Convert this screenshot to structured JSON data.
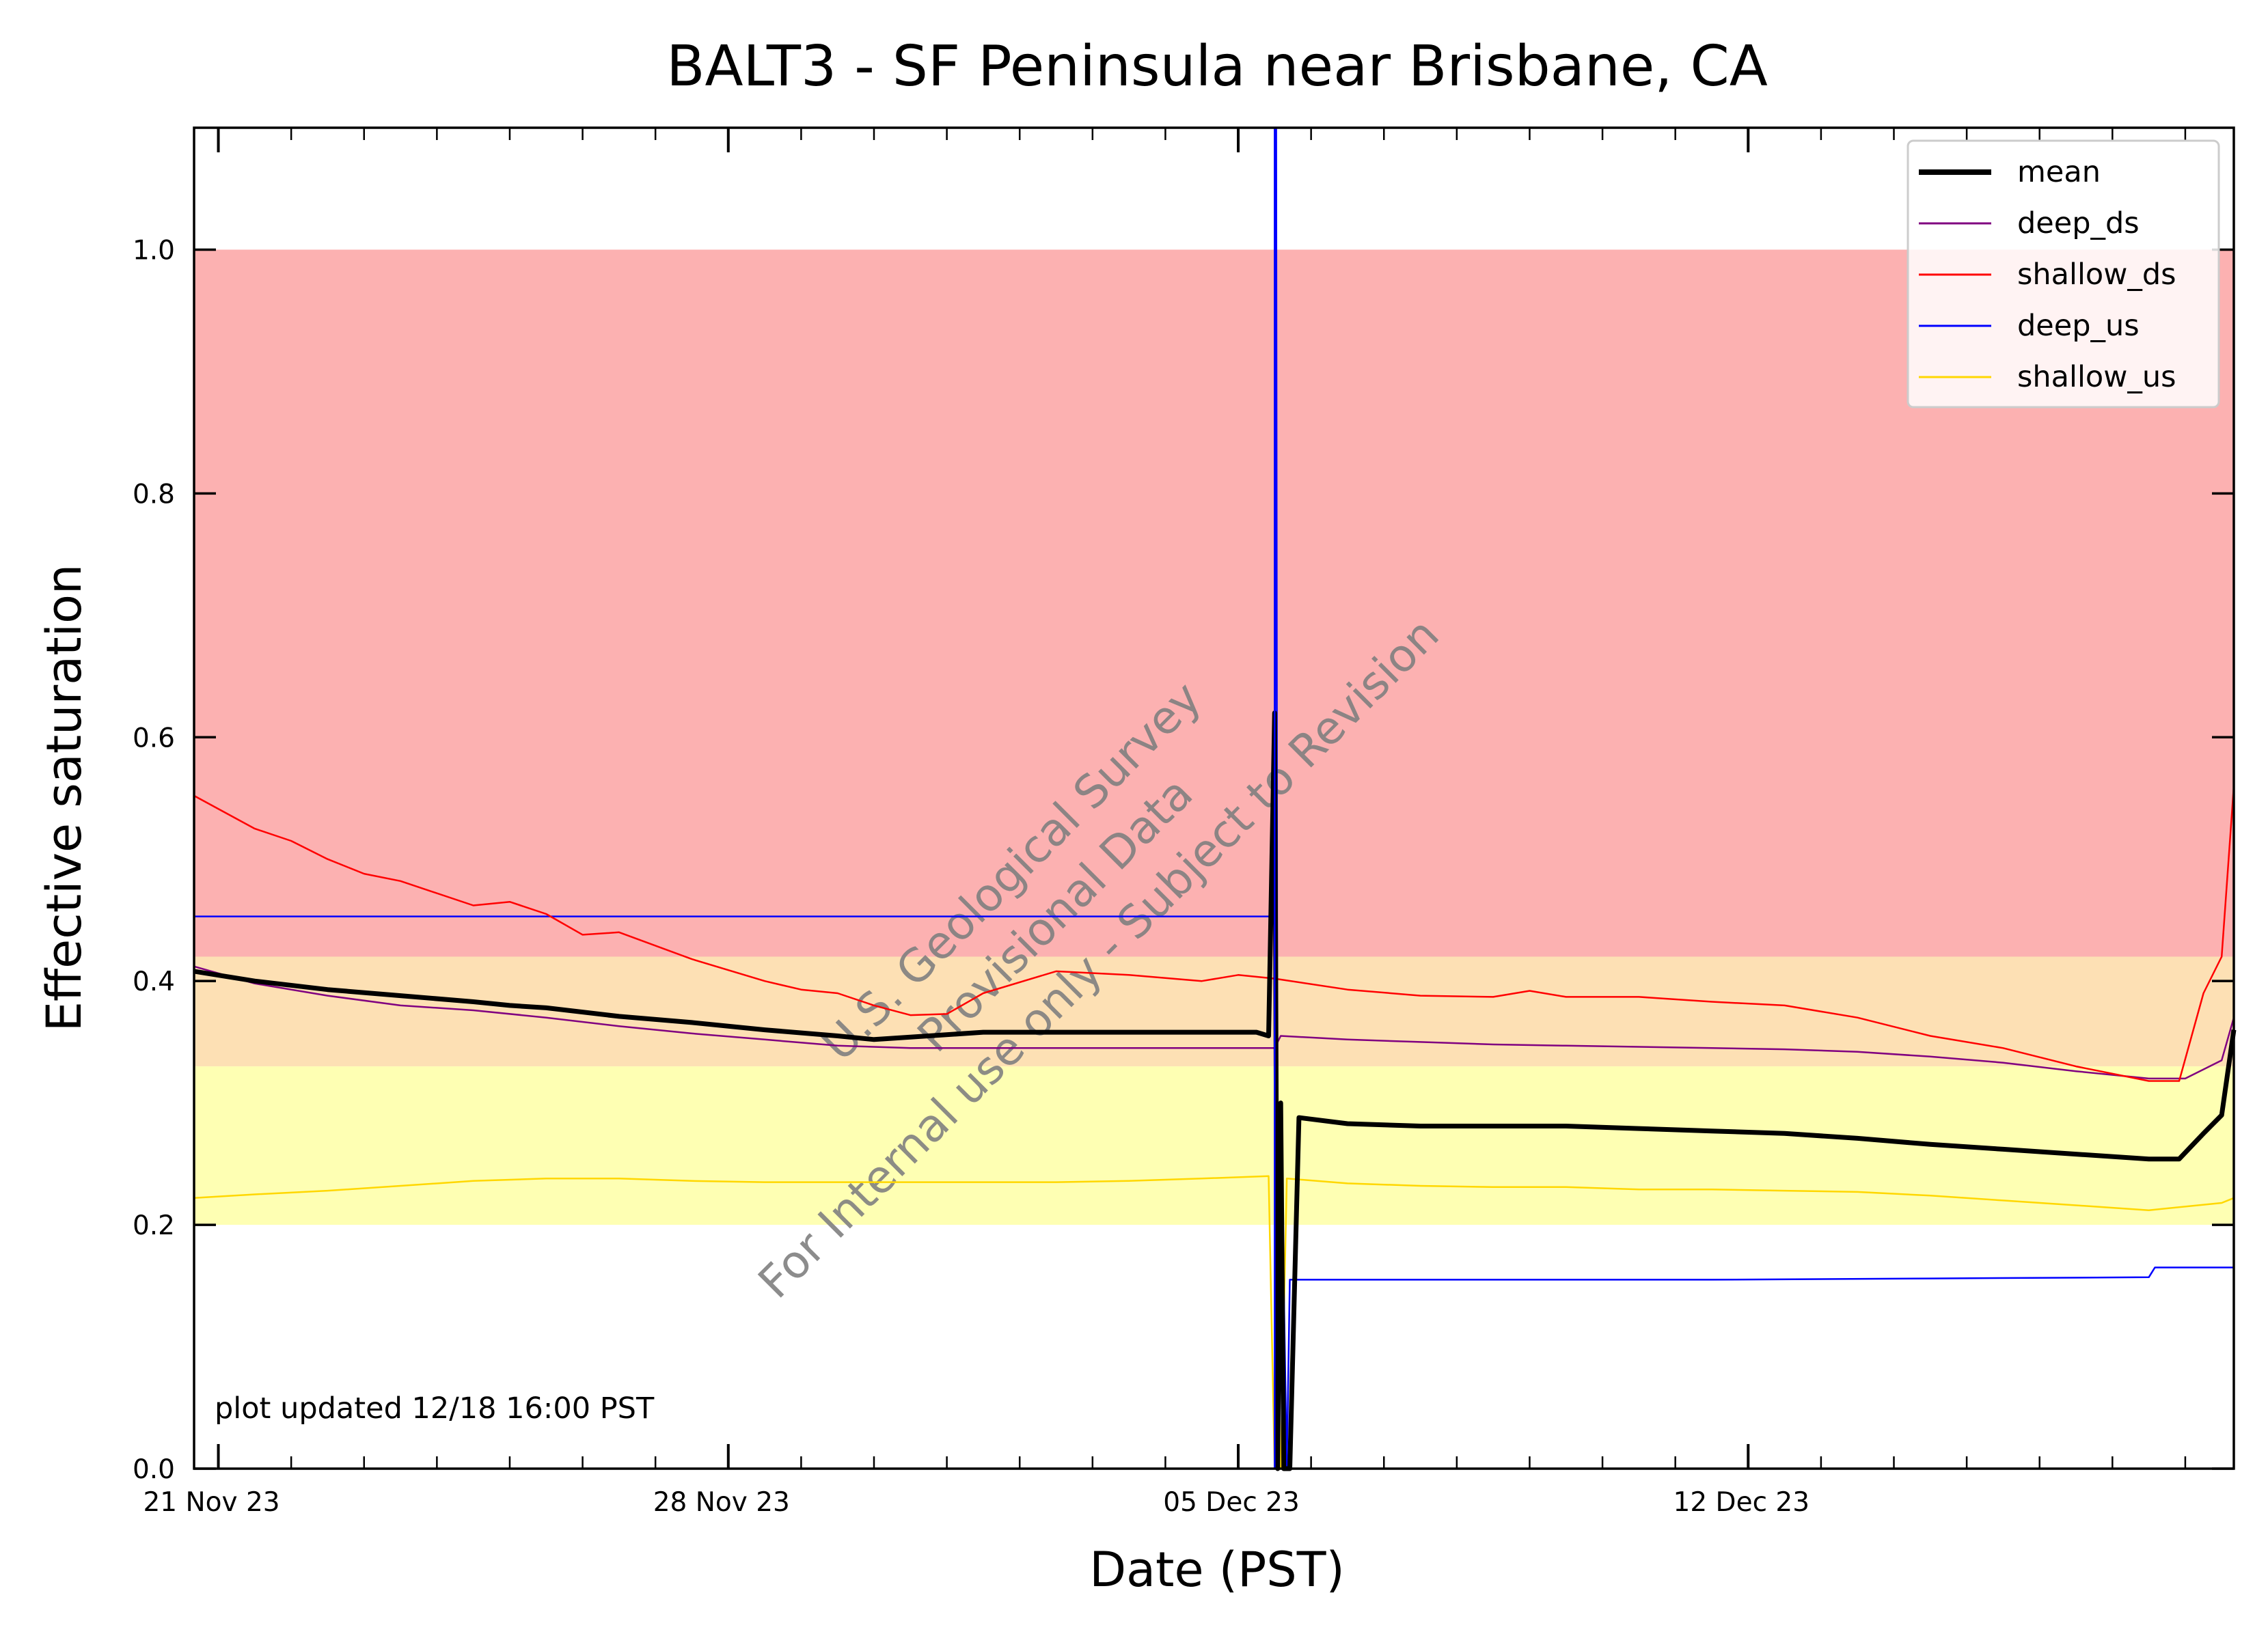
{
  "chart_data": {
    "type": "line",
    "title": "BALT3 - SF Peninsula near Brisbane, CA",
    "xlabel": "Date (PST)",
    "ylabel": "Effective saturation",
    "xlim": [
      "2023-11-20T16:00",
      "2023-12-18T16:00"
    ],
    "ylim": [
      0.0,
      1.1
    ],
    "yticks": [
      0.0,
      0.2,
      0.4,
      0.6,
      0.8,
      1.0
    ],
    "ytick_labels": [
      "0.0",
      "0.2",
      "0.4",
      "0.6",
      "0.8",
      "1.0"
    ],
    "xticks": [
      "2023-11-21",
      "2023-11-28",
      "2023-12-05",
      "2023-12-12"
    ],
    "xtick_labels": [
      "21 Nov 23",
      "28 Nov 23",
      "05 Dec 23",
      "12 Dec 23"
    ],
    "minor_xticks": [
      "2023-11-22",
      "2023-11-23",
      "2023-11-24",
      "2023-11-25",
      "2023-11-26",
      "2023-11-27",
      "2023-11-29",
      "2023-11-30",
      "2023-12-01",
      "2023-12-02",
      "2023-12-03",
      "2023-12-04",
      "2023-12-06",
      "2023-12-07",
      "2023-12-08",
      "2023-12-09",
      "2023-12-10",
      "2023-12-11",
      "2023-12-13",
      "2023-12-14",
      "2023-12-15",
      "2023-12-16",
      "2023-12-17",
      "2023-12-18"
    ],
    "grid": false,
    "legend_position": "top-right",
    "bands": [
      {
        "ymin": 0.42,
        "ymax": 1.0,
        "color": "#fcb1b1"
      },
      {
        "ymin": 0.33,
        "ymax": 0.42,
        "color": "#fde0b4"
      },
      {
        "ymin": 0.2,
        "ymax": 0.33,
        "color": "#feffb3"
      }
    ],
    "annotation": "plot updated 12/18 16:00  PST",
    "watermark": [
      "U.S. Geological Survey",
      "Provisional Data",
      "For Internal use only - Subject to Revision"
    ],
    "event_line": {
      "x": "2023-12-05T12:00",
      "color": "#0000ff"
    },
    "series": [
      {
        "name": "mean",
        "color": "#000000",
        "points": [
          [
            "2023-11-20T16:00",
            0.408
          ],
          [
            "2023-11-21T12:00",
            0.4
          ],
          [
            "2023-11-22T12:00",
            0.393
          ],
          [
            "2023-11-23T12:00",
            0.388
          ],
          [
            "2023-11-24T12:00",
            0.383
          ],
          [
            "2023-11-25T00:00",
            0.38
          ],
          [
            "2023-11-25T12:00",
            0.378
          ],
          [
            "2023-11-26T12:00",
            0.371
          ],
          [
            "2023-11-27T12:00",
            0.366
          ],
          [
            "2023-11-28T12:00",
            0.36
          ],
          [
            "2023-11-29T12:00",
            0.355
          ],
          [
            "2023-11-30T00:00",
            0.352
          ],
          [
            "2023-11-30T12:00",
            0.354
          ],
          [
            "2023-12-01T12:00",
            0.358
          ],
          [
            "2023-12-02T12:00",
            0.358
          ],
          [
            "2023-12-03T12:00",
            0.358
          ],
          [
            "2023-12-04T12:00",
            0.358
          ],
          [
            "2023-12-05T06:00",
            0.358
          ],
          [
            "2023-12-05T10:00",
            0.355
          ],
          [
            "2023-12-05T12:00",
            0.62
          ],
          [
            "2023-12-05T13:00",
            0.0
          ],
          [
            "2023-12-05T14:00",
            0.3
          ],
          [
            "2023-12-05T15:00",
            0.0
          ],
          [
            "2023-12-05T17:00",
            0.0
          ],
          [
            "2023-12-05T20:00",
            0.288
          ],
          [
            "2023-12-06T12:00",
            0.283
          ],
          [
            "2023-12-07T12:00",
            0.281
          ],
          [
            "2023-12-08T12:00",
            0.281
          ],
          [
            "2023-12-09T12:00",
            0.281
          ],
          [
            "2023-12-10T12:00",
            0.279
          ],
          [
            "2023-12-11T12:00",
            0.277
          ],
          [
            "2023-12-12T12:00",
            0.275
          ],
          [
            "2023-12-13T12:00",
            0.271
          ],
          [
            "2023-12-14T12:00",
            0.266
          ],
          [
            "2023-12-15T12:00",
            0.262
          ],
          [
            "2023-12-16T12:00",
            0.258
          ],
          [
            "2023-12-17T12:00",
            0.254
          ],
          [
            "2023-12-17T22:00",
            0.254
          ],
          [
            "2023-12-18T06:00",
            0.275
          ],
          [
            "2023-12-18T12:00",
            0.29
          ],
          [
            "2023-12-18T16:00",
            0.36
          ]
        ]
      },
      {
        "name": "deep_ds",
        "color": "#800080",
        "points": [
          [
            "2023-11-20T16:00",
            0.412
          ],
          [
            "2023-11-21T12:00",
            0.398
          ],
          [
            "2023-11-22T12:00",
            0.388
          ],
          [
            "2023-11-23T12:00",
            0.38
          ],
          [
            "2023-11-24T12:00",
            0.376
          ],
          [
            "2023-11-25T12:00",
            0.37
          ],
          [
            "2023-11-26T12:00",
            0.363
          ],
          [
            "2023-11-27T12:00",
            0.357
          ],
          [
            "2023-11-28T12:00",
            0.352
          ],
          [
            "2023-11-29T12:00",
            0.347
          ],
          [
            "2023-11-30T12:00",
            0.345
          ],
          [
            "2023-12-01T12:00",
            0.345
          ],
          [
            "2023-12-02T12:00",
            0.345
          ],
          [
            "2023-12-03T12:00",
            0.345
          ],
          [
            "2023-12-04T12:00",
            0.345
          ],
          [
            "2023-12-05T12:00",
            0.345
          ],
          [
            "2023-12-05T14:00",
            0.355
          ],
          [
            "2023-12-06T12:00",
            0.352
          ],
          [
            "2023-12-07T12:00",
            0.35
          ],
          [
            "2023-12-08T12:00",
            0.348
          ],
          [
            "2023-12-09T12:00",
            0.347
          ],
          [
            "2023-12-10T12:00",
            0.346
          ],
          [
            "2023-12-11T12:00",
            0.345
          ],
          [
            "2023-12-12T12:00",
            0.344
          ],
          [
            "2023-12-13T12:00",
            0.342
          ],
          [
            "2023-12-14T12:00",
            0.338
          ],
          [
            "2023-12-15T12:00",
            0.333
          ],
          [
            "2023-12-16T12:00",
            0.326
          ],
          [
            "2023-12-17T12:00",
            0.32
          ],
          [
            "2023-12-18T00:00",
            0.32
          ],
          [
            "2023-12-18T12:00",
            0.335
          ],
          [
            "2023-12-18T16:00",
            0.37
          ]
        ]
      },
      {
        "name": "shallow_ds",
        "color": "#ff0000",
        "points": [
          [
            "2023-11-20T16:00",
            0.552
          ],
          [
            "2023-11-21T12:00",
            0.525
          ],
          [
            "2023-11-22T00:00",
            0.515
          ],
          [
            "2023-11-22T12:00",
            0.5
          ],
          [
            "2023-11-23T00:00",
            0.488
          ],
          [
            "2023-11-23T12:00",
            0.482
          ],
          [
            "2023-11-24T12:00",
            0.462
          ],
          [
            "2023-11-25T00:00",
            0.465
          ],
          [
            "2023-11-25T12:00",
            0.455
          ],
          [
            "2023-11-26T00:00",
            0.438
          ],
          [
            "2023-11-26T12:00",
            0.44
          ],
          [
            "2023-11-27T12:00",
            0.418
          ],
          [
            "2023-11-28T12:00",
            0.4
          ],
          [
            "2023-11-29T00:00",
            0.393
          ],
          [
            "2023-11-29T12:00",
            0.39
          ],
          [
            "2023-11-30T00:00",
            0.38
          ],
          [
            "2023-11-30T12:00",
            0.372
          ],
          [
            "2023-12-01T00:00",
            0.373
          ],
          [
            "2023-12-01T12:00",
            0.39
          ],
          [
            "2023-12-02T12:00",
            0.408
          ],
          [
            "2023-12-03T12:00",
            0.405
          ],
          [
            "2023-12-04T12:00",
            0.4
          ],
          [
            "2023-12-05T00:00",
            0.405
          ],
          [
            "2023-12-05T12:00",
            0.402
          ],
          [
            "2023-12-06T12:00",
            0.393
          ],
          [
            "2023-12-07T12:00",
            0.388
          ],
          [
            "2023-12-08T12:00",
            0.387
          ],
          [
            "2023-12-09T00:00",
            0.392
          ],
          [
            "2023-12-09T12:00",
            0.387
          ],
          [
            "2023-12-10T12:00",
            0.387
          ],
          [
            "2023-12-11T12:00",
            0.383
          ],
          [
            "2023-12-12T12:00",
            0.38
          ],
          [
            "2023-12-13T12:00",
            0.37
          ],
          [
            "2023-12-14T12:00",
            0.355
          ],
          [
            "2023-12-15T12:00",
            0.345
          ],
          [
            "2023-12-16T12:00",
            0.33
          ],
          [
            "2023-12-17T12:00",
            0.318
          ],
          [
            "2023-12-17T22:00",
            0.318
          ],
          [
            "2023-12-18T06:00",
            0.39
          ],
          [
            "2023-12-18T12:00",
            0.42
          ],
          [
            "2023-12-18T16:00",
            0.56
          ]
        ]
      },
      {
        "name": "deep_us",
        "color": "#0000ff",
        "points": [
          [
            "2023-11-20T16:00",
            0.453
          ],
          [
            "2023-12-05T12:00",
            0.453
          ],
          [
            "2023-12-05T12:30",
            1.1
          ],
          [
            "2023-12-05T13:00",
            0.0
          ],
          [
            "2023-12-05T14:00",
            0.3
          ],
          [
            "2023-12-05T16:00",
            0.0
          ],
          [
            "2023-12-05T17:00",
            0.155
          ],
          [
            "2023-12-08T12:00",
            0.155
          ],
          [
            "2023-12-11T12:00",
            0.155
          ],
          [
            "2023-12-14T12:00",
            0.156
          ],
          [
            "2023-12-17T12:00",
            0.157
          ],
          [
            "2023-12-17T14:00",
            0.165
          ],
          [
            "2023-12-18T16:00",
            0.165
          ]
        ]
      },
      {
        "name": "shallow_us",
        "color": "#ffd700",
        "points": [
          [
            "2023-11-20T16:00",
            0.222
          ],
          [
            "2023-11-21T12:00",
            0.225
          ],
          [
            "2023-11-22T12:00",
            0.228
          ],
          [
            "2023-11-23T12:00",
            0.232
          ],
          [
            "2023-11-24T12:00",
            0.236
          ],
          [
            "2023-11-25T12:00",
            0.238
          ],
          [
            "2023-11-26T12:00",
            0.238
          ],
          [
            "2023-11-27T12:00",
            0.236
          ],
          [
            "2023-11-28T12:00",
            0.235
          ],
          [
            "2023-11-29T12:00",
            0.235
          ],
          [
            "2023-11-30T12:00",
            0.235
          ],
          [
            "2023-12-01T12:00",
            0.235
          ],
          [
            "2023-12-02T12:00",
            0.235
          ],
          [
            "2023-12-03T12:00",
            0.236
          ],
          [
            "2023-12-04T12:00",
            0.238
          ],
          [
            "2023-12-05T10:00",
            0.24
          ],
          [
            "2023-12-05T12:00",
            0.0
          ],
          [
            "2023-12-05T14:00",
            0.0
          ],
          [
            "2023-12-05T16:00",
            0.238
          ],
          [
            "2023-12-06T12:00",
            0.234
          ],
          [
            "2023-12-07T12:00",
            0.232
          ],
          [
            "2023-12-08T12:00",
            0.231
          ],
          [
            "2023-12-09T12:00",
            0.231
          ],
          [
            "2023-12-10T12:00",
            0.229
          ],
          [
            "2023-12-11T12:00",
            0.229
          ],
          [
            "2023-12-12T12:00",
            0.228
          ],
          [
            "2023-12-13T12:00",
            0.227
          ],
          [
            "2023-12-14T12:00",
            0.224
          ],
          [
            "2023-12-15T12:00",
            0.22
          ],
          [
            "2023-12-16T12:00",
            0.216
          ],
          [
            "2023-12-17T12:00",
            0.212
          ],
          [
            "2023-12-18T12:00",
            0.218
          ],
          [
            "2023-12-18T16:00",
            0.222
          ]
        ]
      }
    ]
  }
}
